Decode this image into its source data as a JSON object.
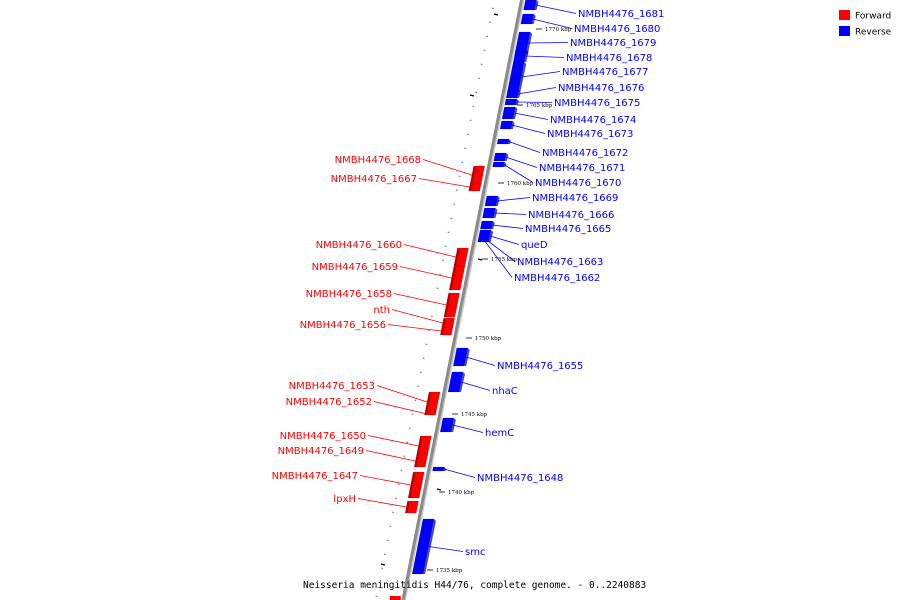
{
  "legend": {
    "forward_label": "Forward",
    "reverse_label": "Reverse",
    "forward_color": "#ff0000",
    "reverse_color": "#0000ff"
  },
  "caption": "Neisseria meningitidis H44/76, complete genome. - 0..2240883",
  "colors": {
    "forward": "#ff0000",
    "reverse": "#0000ff",
    "backbone": "#8a8a8a"
  },
  "scale_marks": [
    {
      "position_kbp": 1770,
      "label": "1770 kbp"
    },
    {
      "position_kbp": 1765,
      "label": "1765 kbp"
    },
    {
      "position_kbp": 1760,
      "label": "1760 kbp"
    },
    {
      "position_kbp": 1755,
      "label": "1755 kbp"
    },
    {
      "position_kbp": 1750,
      "label": "1750 kbp"
    },
    {
      "position_kbp": 1745,
      "label": "1745 kbp"
    },
    {
      "position_kbp": 1740,
      "label": "1740 kbp"
    },
    {
      "position_kbp": 1735,
      "label": "1735 kbp"
    }
  ],
  "features": [
    {
      "name": "NMBH4476_1681",
      "strand": "reverse"
    },
    {
      "name": "NMBH4476_1680",
      "strand": "reverse"
    },
    {
      "name": "NMBH4476_1679",
      "strand": "reverse"
    },
    {
      "name": "NMBH4476_1678",
      "strand": "reverse"
    },
    {
      "name": "NMBH4476_1677",
      "strand": "reverse"
    },
    {
      "name": "NMBH4476_1676",
      "strand": "reverse"
    },
    {
      "name": "NMBH4476_1675",
      "strand": "reverse"
    },
    {
      "name": "NMBH4476_1674",
      "strand": "reverse"
    },
    {
      "name": "NMBH4476_1673",
      "strand": "reverse"
    },
    {
      "name": "NMBH4476_1672",
      "strand": "reverse"
    },
    {
      "name": "NMBH4476_1671",
      "strand": "reverse"
    },
    {
      "name": "NMBH4476_1670",
      "strand": "reverse"
    },
    {
      "name": "NMBH4476_1669",
      "strand": "reverse"
    },
    {
      "name": "NMBH4476_1666",
      "strand": "reverse"
    },
    {
      "name": "NMBH4476_1665",
      "strand": "reverse"
    },
    {
      "name": "queD",
      "strand": "reverse"
    },
    {
      "name": "NMBH4476_1663",
      "strand": "reverse"
    },
    {
      "name": "NMBH4476_1662",
      "strand": "reverse"
    },
    {
      "name": "NMBH4476_1655",
      "strand": "reverse"
    },
    {
      "name": "nhaC",
      "strand": "reverse"
    },
    {
      "name": "hemC",
      "strand": "reverse"
    },
    {
      "name": "NMBH4476_1648",
      "strand": "reverse"
    },
    {
      "name": "smc",
      "strand": "reverse"
    },
    {
      "name": "NMBH4476_1668",
      "strand": "forward"
    },
    {
      "name": "NMBH4476_1667",
      "strand": "forward"
    },
    {
      "name": "NMBH4476_1660",
      "strand": "forward"
    },
    {
      "name": "NMBH4476_1659",
      "strand": "forward"
    },
    {
      "name": "NMBH4476_1658",
      "strand": "forward"
    },
    {
      "name": "nth",
      "strand": "forward"
    },
    {
      "name": "NMBH4476_1656",
      "strand": "forward"
    },
    {
      "name": "NMBH4476_1653",
      "strand": "forward"
    },
    {
      "name": "NMBH4476_1652",
      "strand": "forward"
    },
    {
      "name": "NMBH4476_1650",
      "strand": "forward"
    },
    {
      "name": "NMBH4476_1649",
      "strand": "forward"
    },
    {
      "name": "NMBH4476_1647",
      "strand": "forward"
    },
    {
      "name": "lpxH",
      "strand": "forward"
    }
  ]
}
